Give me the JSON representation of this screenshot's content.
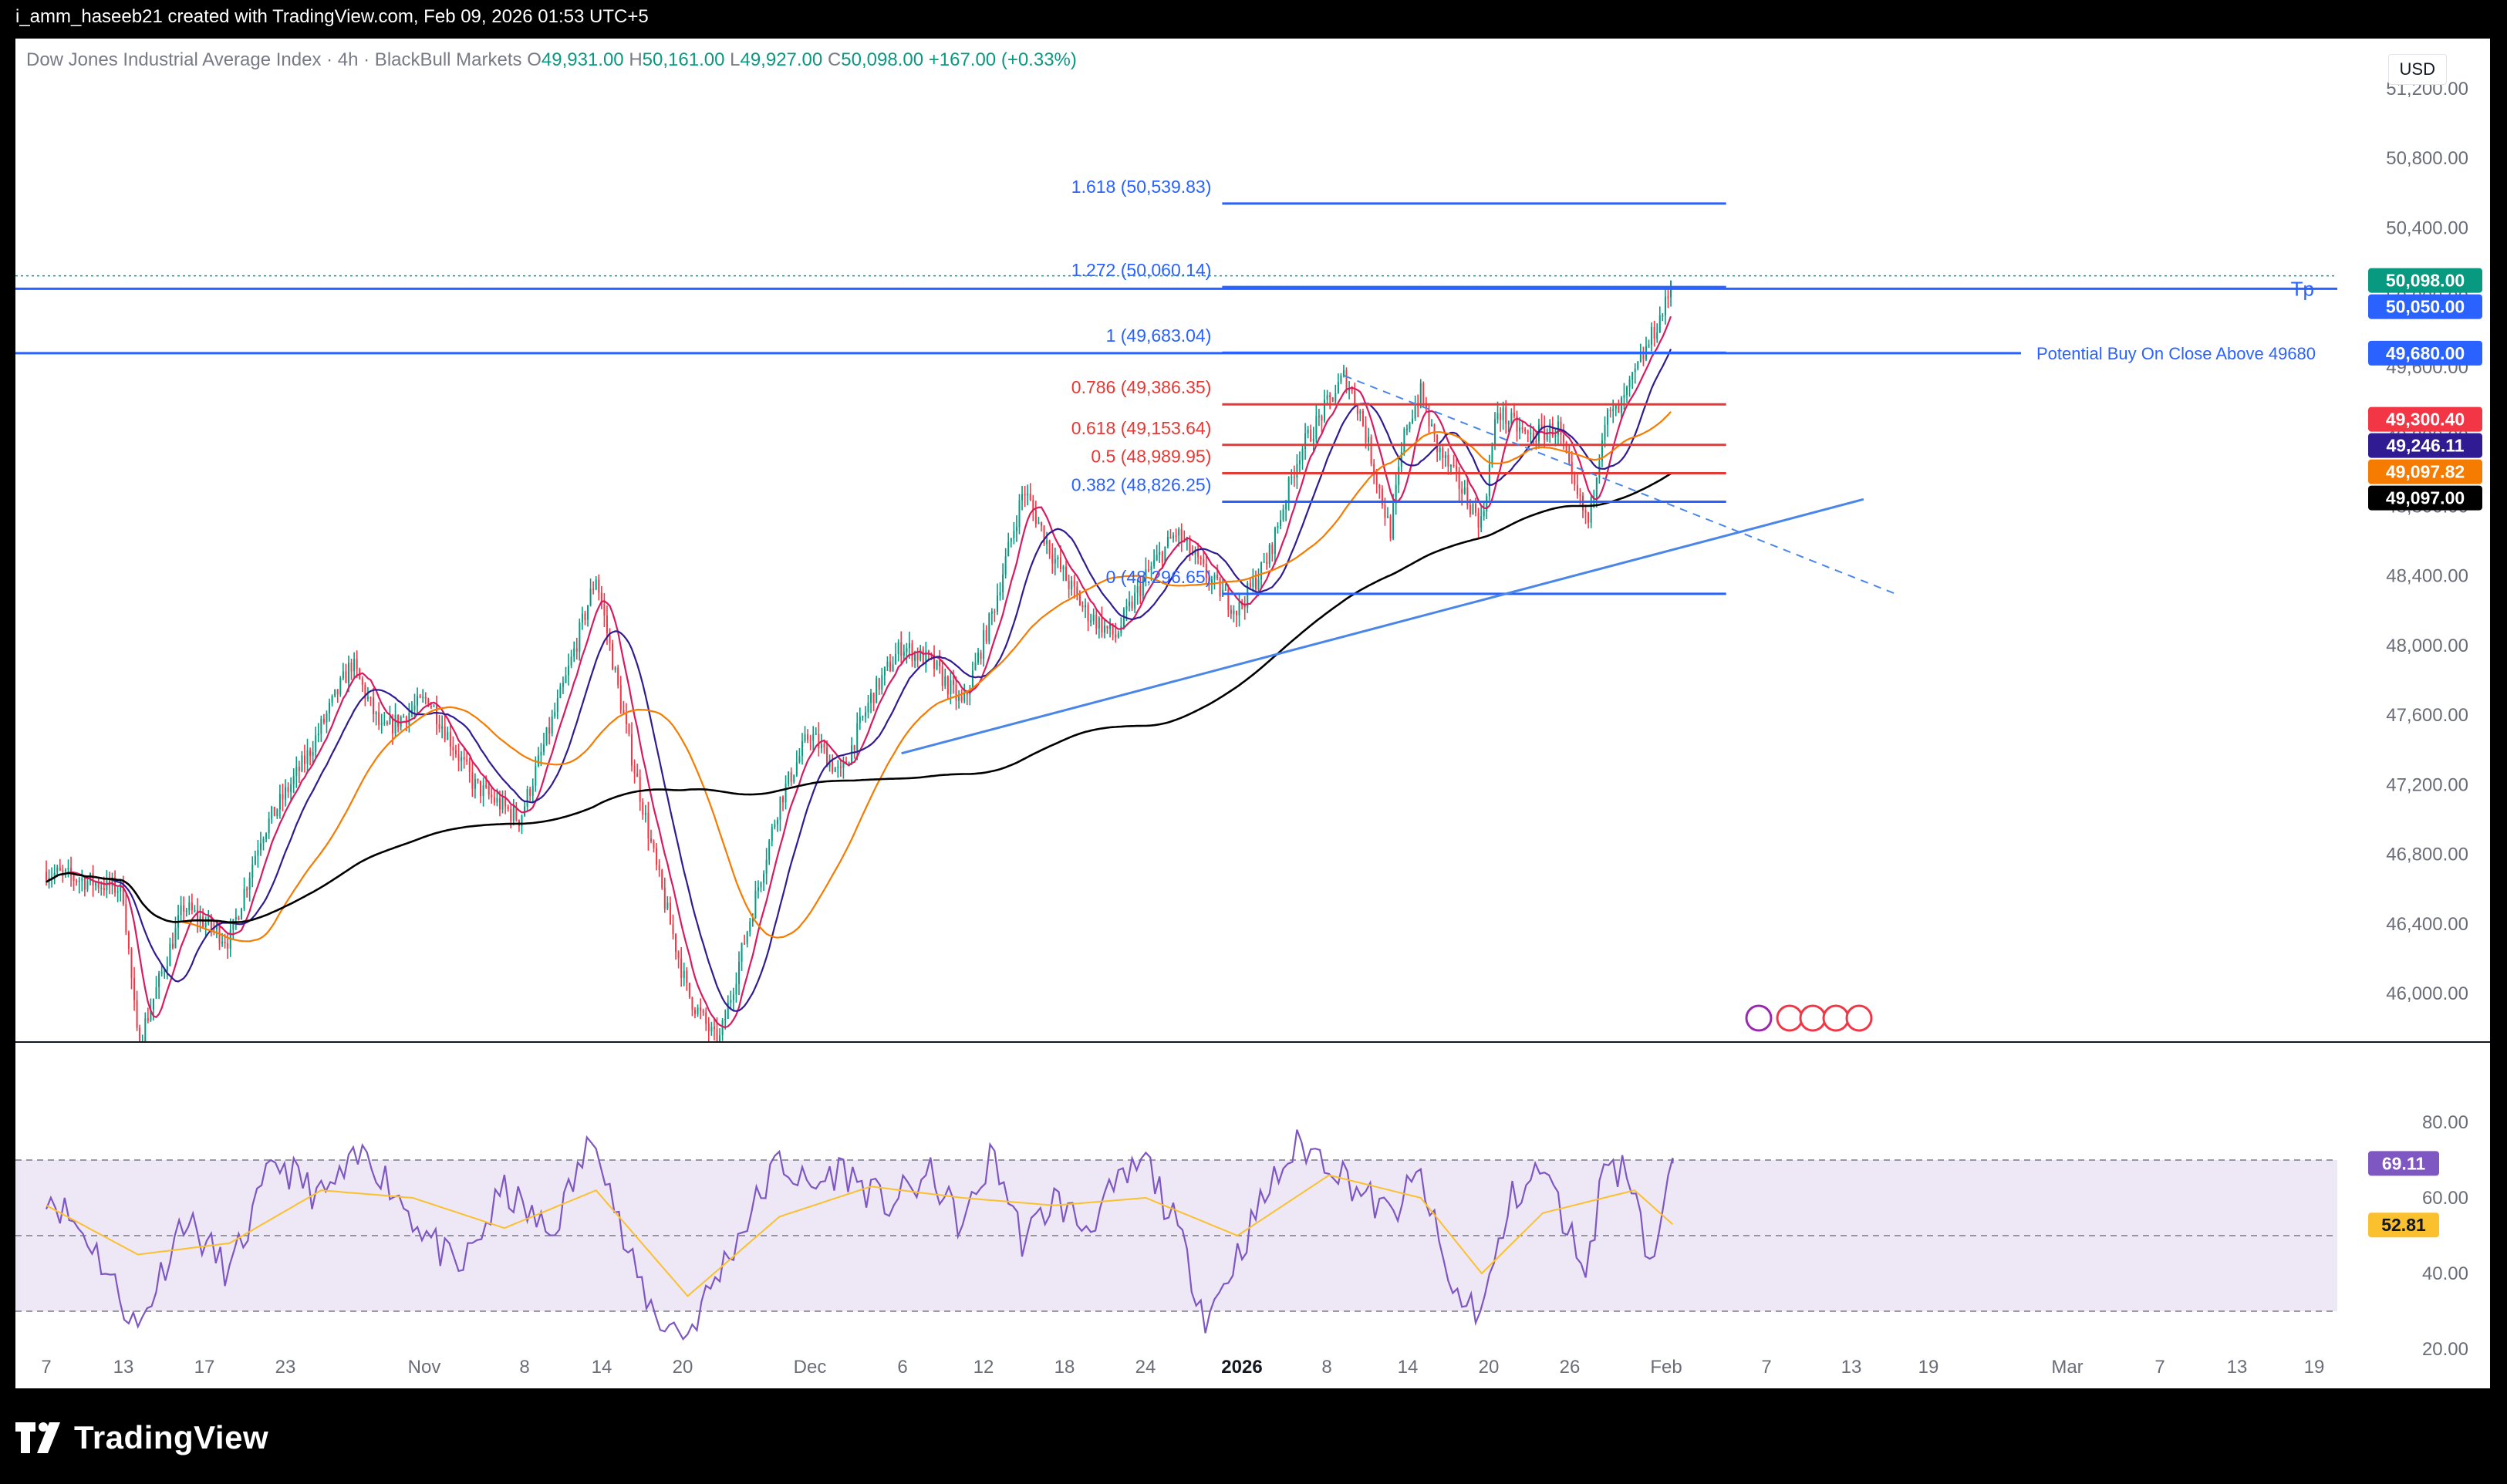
{
  "caption": "i_amm_haseeb21 created with TradingView.com, Feb 09, 2026 01:53 UTC+5",
  "footer": {
    "brand": "TradingView"
  },
  "symbol": {
    "name": "Dow Jones Industrial Average Index · 4h · BlackBull Markets",
    "o_label": "O",
    "o": "49,931.00",
    "h_label": "H",
    "h": "50,161.00",
    "l_label": "L",
    "l": "49,927.00",
    "c_label": "C",
    "c": "50,098.00",
    "change": "+167.00 (+0.33%)"
  },
  "currency": "USD",
  "colors": {
    "up": "#089981",
    "down": "#f23645",
    "fib_blue": "#2962ff",
    "fib_red": "#e53935",
    "ma_fast": "#d81b60",
    "ma_mid": "#311b92",
    "ma_orange": "#f57c00",
    "ma_black": "#000000",
    "rsi": "#7e57c2",
    "rsi_ma": "#fbc02d",
    "rsi_bg": "#ede7f6"
  },
  "chart_data": {
    "type": "candlestick",
    "price_axis": {
      "ticks": [
        "51,200.00",
        "50,800.00",
        "50,400.00",
        "50,000.00",
        "49,600.00",
        "49,200.00",
        "48,800.00",
        "48,400.00",
        "48,000.00",
        "47,600.00",
        "47,200.00",
        "46,800.00",
        "46,400.00",
        "46,000.00"
      ],
      "ylim": [
        45700,
        51500
      ]
    },
    "time_axis": [
      "7",
      "13",
      "17",
      "23",
      "Nov",
      "8",
      "14",
      "20",
      "Dec",
      "6",
      "12",
      "18",
      "24",
      "2026",
      "8",
      "14",
      "20",
      "26",
      "Feb",
      "7",
      "13",
      "19",
      "Mar",
      "7",
      "13",
      "19"
    ],
    "path": [
      [
        0,
        46700
      ],
      [
        5,
        46600
      ],
      [
        6,
        45700
      ],
      [
        9,
        46500
      ],
      [
        12,
        46300
      ],
      [
        14,
        46900
      ],
      [
        17,
        47350
      ],
      [
        20,
        47900
      ],
      [
        22,
        47500
      ],
      [
        25,
        47700
      ],
      [
        28,
        47200
      ],
      [
        31,
        47000
      ],
      [
        34,
        47800
      ],
      [
        36,
        48400
      ],
      [
        38,
        47500
      ],
      [
        40,
        46700
      ],
      [
        42,
        46000
      ],
      [
        44,
        45700
      ],
      [
        46,
        46400
      ],
      [
        48,
        47100
      ],
      [
        50,
        47500
      ],
      [
        52,
        47250
      ],
      [
        54,
        47700
      ],
      [
        56,
        48000
      ],
      [
        58,
        47900
      ],
      [
        60,
        47650
      ],
      [
        62,
        48200
      ],
      [
        64,
        48900
      ],
      [
        66,
        48500
      ],
      [
        68,
        48200
      ],
      [
        70,
        48050
      ],
      [
        72,
        48400
      ],
      [
        74,
        48650
      ],
      [
        76,
        48400
      ],
      [
        78,
        48200
      ],
      [
        80,
        48500
      ],
      [
        82,
        49100
      ],
      [
        84,
        49400
      ],
      [
        85,
        49550
      ],
      [
        86,
        49350
      ],
      [
        87,
        49000
      ],
      [
        88,
        48650
      ],
      [
        89,
        49250
      ],
      [
        90,
        49450
      ],
      [
        91,
        49150
      ],
      [
        92,
        49000
      ],
      [
        93,
        48850
      ],
      [
        94,
        48700
      ],
      [
        95,
        49350
      ],
      [
        97,
        49200
      ],
      [
        99,
        49250
      ],
      [
        100,
        48900
      ],
      [
        101,
        48700
      ],
      [
        102,
        49300
      ],
      [
        103,
        49350
      ],
      [
        104,
        49550
      ],
      [
        105,
        49750
      ],
      [
        106,
        49950
      ],
      [
        106.5,
        50098
      ]
    ],
    "fib_levels": [
      {
        "label": "1.618 (50,539.83)",
        "price": 50540,
        "color": "#2962ff"
      },
      {
        "label": "1.272 (50,060.14)",
        "price": 50060,
        "color": "#2962ff"
      },
      {
        "label": "1 (49,683.04)",
        "price": 49683,
        "color": "#2962ff"
      },
      {
        "label": "0.786 (49,386.35)",
        "price": 49386,
        "color": "#e53935"
      },
      {
        "label": "0.618 (49,153.64)",
        "price": 49153,
        "color": "#e53935"
      },
      {
        "label": "0.5 (48,989.95)",
        "price": 48990,
        "color": "#e53935"
      },
      {
        "label": "0.382 (48,826.25)",
        "price": 48826,
        "color": "#2962ff"
      },
      {
        "label": "0 (48,296.65)",
        "price": 48297,
        "color": "#2962ff"
      }
    ],
    "horizontal_lines": [
      {
        "price": 50050,
        "label": "Tp"
      },
      {
        "price": 49680,
        "label": "Potential Buy On Close Above 49680"
      }
    ],
    "price_labels": [
      {
        "text": "50,098.00",
        "price": 50098,
        "bg": "#089981",
        "fg": "#ffffff"
      },
      {
        "text": "50,050.00",
        "price": 50050,
        "bg": "#2962ff",
        "fg": "#ffffff"
      },
      {
        "text": "49,680.00",
        "price": 49680,
        "bg": "#2962ff",
        "fg": "#ffffff"
      },
      {
        "text": "49,300.40",
        "price": 49300,
        "bg": "#f23645",
        "fg": "#ffffff"
      },
      {
        "text": "49,246.11",
        "price": 49246,
        "bg": "#311b92",
        "fg": "#ffffff"
      },
      {
        "text": "49,097.82",
        "price": 49098,
        "bg": "#f57c00",
        "fg": "#ffffff"
      },
      {
        "text": "49,097.00",
        "price": 49097,
        "bg": "#000000",
        "fg": "#ffffff"
      }
    ],
    "rsi": {
      "ticks": [
        "80.00",
        "60.00",
        "40.00",
        "20.00"
      ],
      "bands": [
        70,
        50,
        30
      ],
      "rsi_value": "69.11",
      "ma_value": "52.81",
      "path": [
        [
          0,
          62
        ],
        [
          3,
          48
        ],
        [
          6,
          25
        ],
        [
          9,
          55
        ],
        [
          12,
          40
        ],
        [
          15,
          70
        ],
        [
          18,
          60
        ],
        [
          21,
          72
        ],
        [
          24,
          55
        ],
        [
          27,
          40
        ],
        [
          30,
          62
        ],
        [
          33,
          50
        ],
        [
          36,
          78
        ],
        [
          38,
          45
        ],
        [
          40,
          28
        ],
        [
          42,
          24
        ],
        [
          44,
          40
        ],
        [
          46,
          55
        ],
        [
          48,
          70
        ],
        [
          50,
          62
        ],
        [
          52,
          68
        ],
        [
          55,
          58
        ],
        [
          58,
          66
        ],
        [
          60,
          52
        ],
        [
          62,
          72
        ],
        [
          64,
          48
        ],
        [
          66,
          60
        ],
        [
          68,
          52
        ],
        [
          70,
          62
        ],
        [
          72,
          70
        ],
        [
          74,
          52
        ],
        [
          76,
          28
        ],
        [
          78,
          45
        ],
        [
          80,
          62
        ],
        [
          82,
          74
        ],
        [
          84,
          70
        ],
        [
          86,
          62
        ],
        [
          88,
          55
        ],
        [
          90,
          66
        ],
        [
          92,
          35
        ],
        [
          94,
          30
        ],
        [
          96,
          60
        ],
        [
          98,
          68
        ],
        [
          100,
          48
        ],
        [
          101,
          42
        ],
        [
          102,
          70
        ],
        [
          104,
          65
        ],
        [
          105,
          42
        ],
        [
          106,
          58
        ],
        [
          106.5,
          69
        ]
      ],
      "ma_path": [
        [
          0,
          58
        ],
        [
          6,
          45
        ],
        [
          12,
          48
        ],
        [
          18,
          62
        ],
        [
          24,
          60
        ],
        [
          30,
          52
        ],
        [
          36,
          62
        ],
        [
          42,
          34
        ],
        [
          48,
          55
        ],
        [
          54,
          63
        ],
        [
          60,
          60
        ],
        [
          66,
          58
        ],
        [
          72,
          60
        ],
        [
          78,
          50
        ],
        [
          84,
          66
        ],
        [
          90,
          60
        ],
        [
          94,
          40
        ],
        [
          98,
          56
        ],
        [
          102,
          60
        ],
        [
          104,
          62
        ],
        [
          106.5,
          53
        ]
      ]
    }
  }
}
